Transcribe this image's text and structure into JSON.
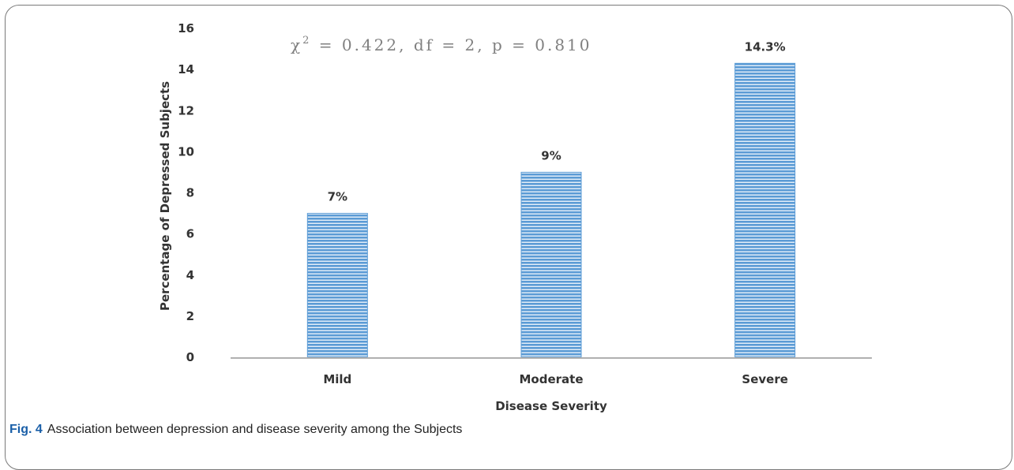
{
  "chart_data": {
    "type": "bar",
    "categories": [
      "Mild",
      "Moderate",
      "Severe"
    ],
    "values": [
      7,
      9,
      14.3
    ],
    "data_labels": [
      "7%",
      "9%",
      "14.3%"
    ],
    "xlabel": "Disease Severity",
    "ylabel": "Percentage of Depressed Subjects",
    "ylim": [
      0,
      16
    ],
    "yticks": [
      "0",
      "2",
      "4",
      "6",
      "8",
      "10",
      "12",
      "14",
      "16"
    ],
    "annotation": {
      "prefix": "χ",
      "sup": "2",
      "rest": " = 0.422, df = 2, p = 0.810"
    },
    "grid": false,
    "legend": "none",
    "bar_color": "#5b9bd5",
    "bar_stripe_color": "#ffffff"
  },
  "caption": {
    "label": "Fig. 4",
    "text": "Association between depression and disease severity among the Subjects"
  }
}
